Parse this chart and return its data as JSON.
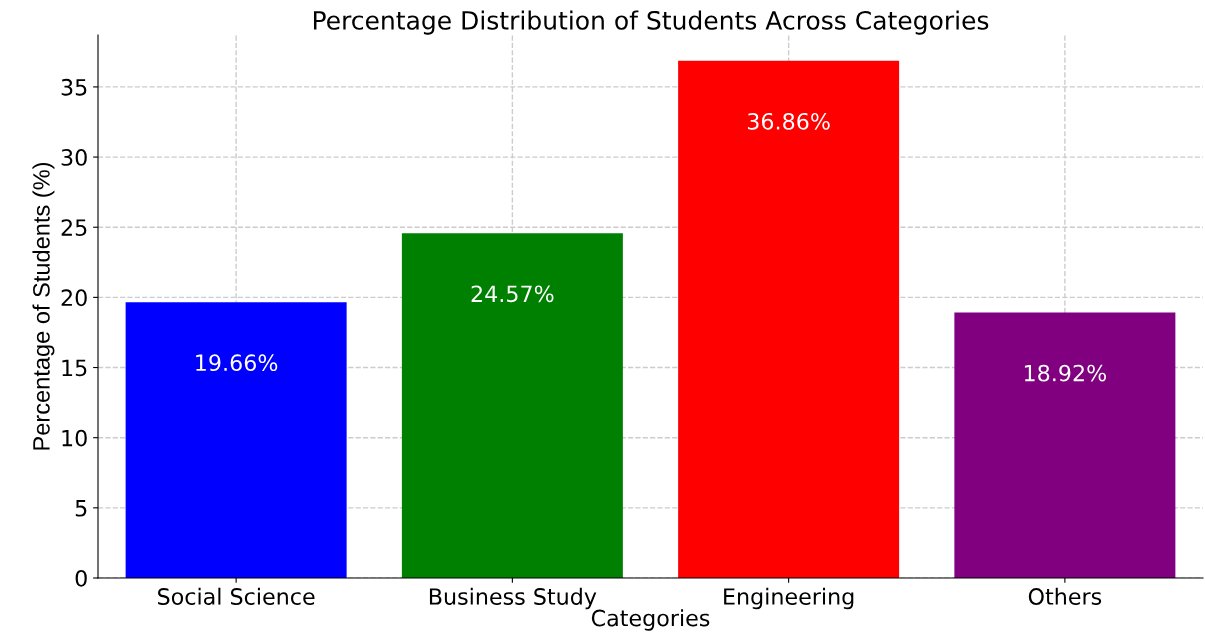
{
  "chart_data": {
    "type": "bar",
    "title": "Percentage Distribution of Students Across Categories",
    "xlabel": "Categories",
    "ylabel": "Percentage of Students (%)",
    "categories": [
      "Social Science",
      "Business Study",
      "Engineering",
      "Others"
    ],
    "values": [
      19.66,
      24.57,
      36.86,
      18.92
    ],
    "colors": [
      "#0000ff",
      "#008000",
      "#ff0000",
      "#800080"
    ],
    "value_labels": [
      "19.66%",
      "24.57%",
      "36.86%",
      "18.92%"
    ],
    "ylim": [
      0,
      38.7
    ],
    "yticks": [
      0,
      5,
      10,
      15,
      20,
      25,
      30,
      35
    ],
    "grid": true
  }
}
